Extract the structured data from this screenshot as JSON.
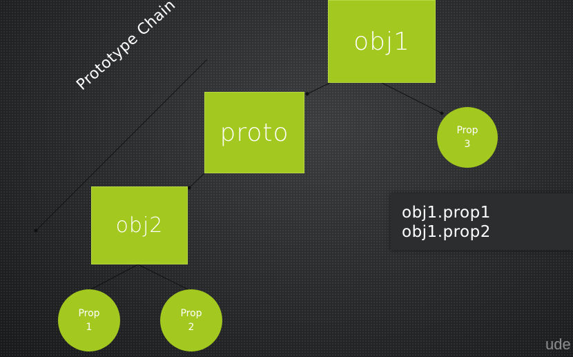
{
  "diagram": {
    "nodes": {
      "obj1": "obj1",
      "proto": "proto",
      "obj2": "obj2"
    },
    "props": {
      "prop3": {
        "line1": "Prop",
        "line2": "3"
      },
      "prop1": {
        "line1": "Prop",
        "line2": "1"
      },
      "prop2": {
        "line1": "Prop",
        "line2": "2"
      }
    },
    "chain_label": "Prototype Chain",
    "code": {
      "line1": "obj1.prop1",
      "line2": "obj1.prop2"
    }
  },
  "logo": {
    "text": "ude"
  },
  "colors": {
    "node_fill": "#a3c81f",
    "background": "#2b2c2e",
    "text": "#ffffff"
  }
}
